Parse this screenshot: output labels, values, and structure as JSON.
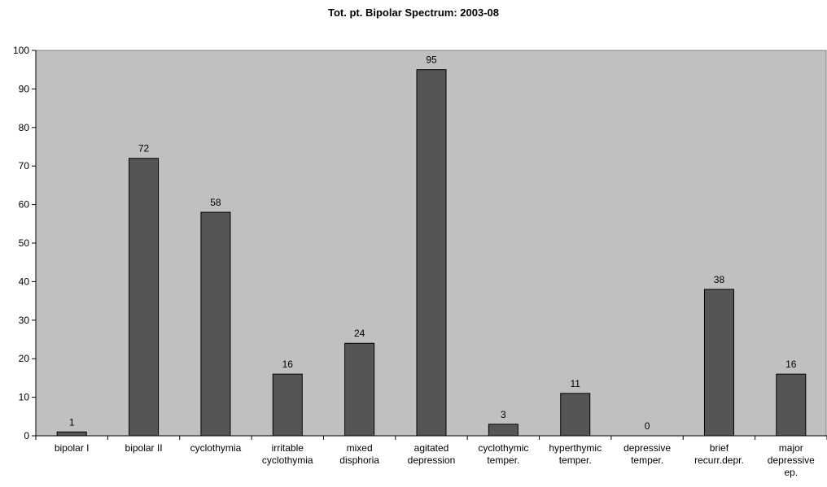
{
  "chart_data": {
    "type": "bar",
    "title": "Tot. pt. Bipolar Spectrum: 2003-08",
    "xlabel": "",
    "ylabel": "",
    "ylim": [
      0,
      100
    ],
    "yticks": [
      0,
      10,
      20,
      30,
      40,
      50,
      60,
      70,
      80,
      90,
      100
    ],
    "grid": false,
    "legend": "none",
    "categories": [
      [
        "bipolar I"
      ],
      [
        "bipolar II"
      ],
      [
        "cyclothymia"
      ],
      [
        "irritable",
        "cyclothymia"
      ],
      [
        "mixed",
        "disphoria"
      ],
      [
        "agitated",
        "depression"
      ],
      [
        "cyclothymic",
        "temper."
      ],
      [
        "hyperthymic",
        "temper."
      ],
      [
        "depressive",
        "temper."
      ],
      [
        "brief",
        "recurr.depr."
      ],
      [
        "major",
        "depressive",
        "ep."
      ]
    ],
    "values": [
      1,
      72,
      58,
      16,
      24,
      95,
      3,
      11,
      0,
      38,
      16
    ],
    "colors": {
      "plot_bg": "#c0c0c0",
      "bar": "#555555",
      "axis": "#000000"
    }
  }
}
